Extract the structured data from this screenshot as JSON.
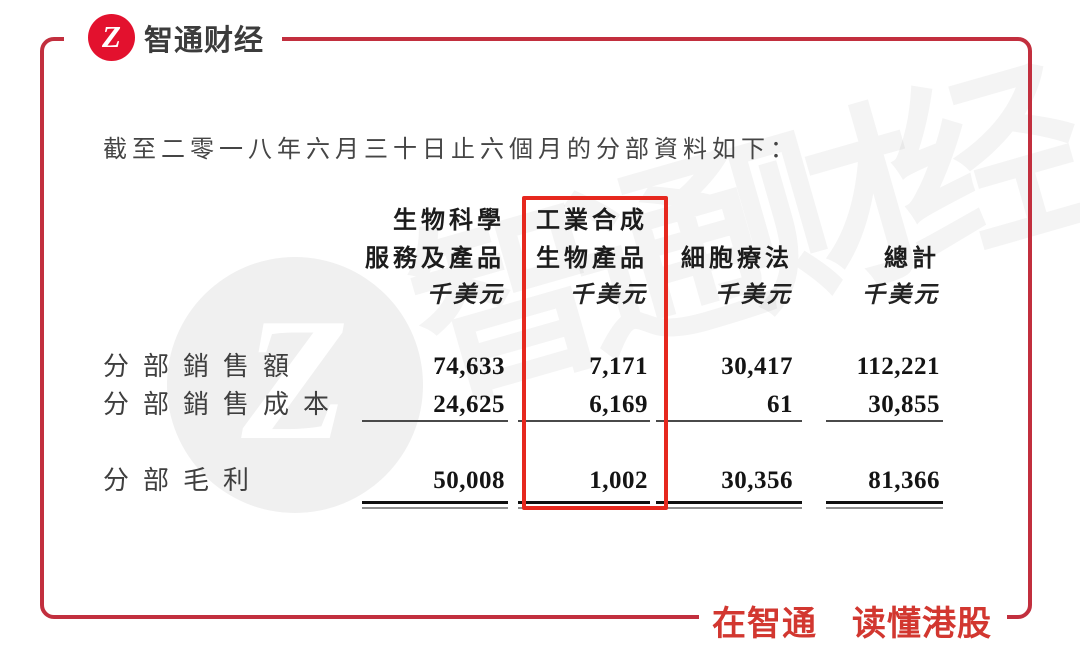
{
  "brand": {
    "logo_glyph": "Z",
    "logo_text": "智通财经",
    "slogan": "在智通　读懂港股",
    "watermark_text": "智通财经",
    "watermark_glyph": "Z"
  },
  "colors": {
    "frame_red": "#c22f3e",
    "highlight_red": "#e6281e",
    "logo_red": "#e3112e",
    "slogan_red": "#d23730",
    "body_text": "#1c1c1c"
  },
  "document": {
    "title": "截至二零一八年六月三十日止六個月的分部資料如下：",
    "table": {
      "columns": [
        {
          "line1": "生物科學",
          "line2": "服務及產品",
          "unit": "千美元"
        },
        {
          "line1": "工業合成",
          "line2": "生物產品",
          "unit": "千美元"
        },
        {
          "line1": "",
          "line2": "細胞療法",
          "unit": "千美元"
        },
        {
          "line1": "",
          "line2": "總計",
          "unit": "千美元"
        }
      ],
      "highlighted_column": "工業合成生物產品",
      "rows": [
        {
          "label": "分部銷售額",
          "values": [
            "74,633",
            "7,171",
            "30,417",
            "112,221"
          ]
        },
        {
          "label": "分部銷售成本",
          "values": [
            "24,625",
            "6,169",
            "61",
            "30,855"
          ]
        },
        {
          "label": "分部毛利",
          "values": [
            "50,008",
            "1,002",
            "30,356",
            "81,366"
          ]
        }
      ]
    }
  }
}
